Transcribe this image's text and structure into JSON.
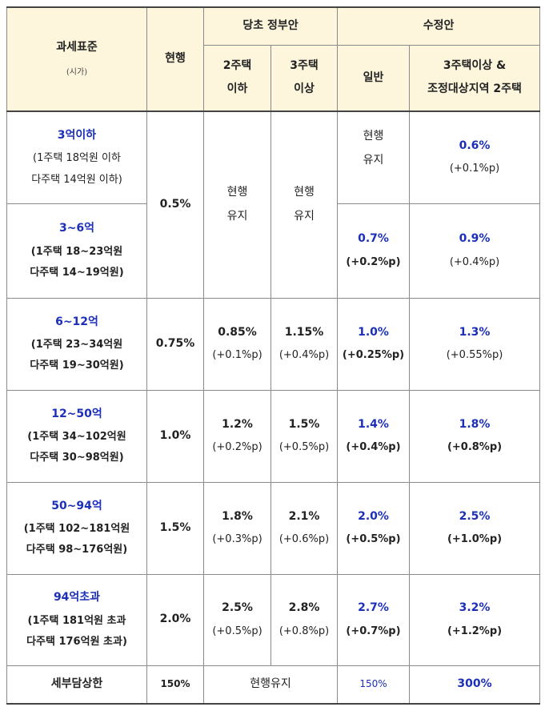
{
  "header": {
    "tax_base": "과세표준",
    "tax_base_sub": "(시가)",
    "current": "현행",
    "gov_proposal": "당초 정부안",
    "gov_two_line1": "2주택",
    "gov_two_line2": "이하",
    "gov_three_line1": "3주택",
    "gov_three_line2": "이상",
    "revised": "수정안",
    "rev_general": "일반",
    "rev_multi_line1": "3주택이상 &",
    "rev_multi_line2": "조정대상지역 2주택"
  },
  "rows": [
    {
      "title": "3억이하",
      "desc1": "(1주택 18억원 이하",
      "desc2": "다주택 14억원 이하)",
      "rev_general_1": "현행",
      "rev_general_2": "유지",
      "rev_multi_rate": "0.6%",
      "rev_multi_diff": "(+0.1%p)"
    },
    {
      "title": "3~6억",
      "desc1": "(1주택 18~23억원",
      "desc2": "다주택 14~19억원)",
      "rev_general_rate": "0.7%",
      "rev_general_diff": "(+0.2%p)",
      "rev_multi_rate": "0.9%",
      "rev_multi_diff": "(+0.4%p)"
    },
    {
      "title": "6~12억",
      "desc1": "(1주택 23~34억원",
      "desc2": "다주택 19~30억원)",
      "current": "0.75%",
      "gov_two_rate": "0.85%",
      "gov_two_diff": "(+0.1%p)",
      "gov_three_rate": "1.15%",
      "gov_three_diff": "(+0.4%p)",
      "rev_general_rate": "1.0%",
      "rev_general_diff": "(+0.25%p)",
      "rev_multi_rate": "1.3%",
      "rev_multi_diff": "(+0.55%p)"
    },
    {
      "title": "12~50억",
      "desc1": "(1주택 34~102억원",
      "desc2": "다주택 30~98억원)",
      "current": "1.0%",
      "gov_two_rate": "1.2%",
      "gov_two_diff": "(+0.2%p)",
      "gov_three_rate": "1.5%",
      "gov_three_diff": "(+0.5%p)",
      "rev_general_rate": "1.4%",
      "rev_general_diff": "(+0.4%p)",
      "rev_multi_rate": "1.8%",
      "rev_multi_diff": "(+0.8%p)"
    },
    {
      "title": "50~94억",
      "desc1": "(1주택 102~181억원",
      "desc2": "다주택 98~176억원)",
      "current": "1.5%",
      "gov_two_rate": "1.8%",
      "gov_two_diff": "(+0.3%p)",
      "gov_three_rate": "2.1%",
      "gov_three_diff": "(+0.6%p)",
      "rev_general_rate": "2.0%",
      "rev_general_diff": "(+0.5%p)",
      "rev_multi_rate": "2.5%",
      "rev_multi_diff": "(+1.0%p)"
    },
    {
      "title": "94억초과",
      "desc1": "(1주택 181억원 초과",
      "desc2": "다주택 176억원 초과)",
      "current": "2.0%",
      "gov_two_rate": "2.5%",
      "gov_two_diff": "(+0.5%p)",
      "gov_three_rate": "2.8%",
      "gov_three_diff": "(+0.8%p)",
      "rev_general_rate": "2.7%",
      "rev_general_diff": "(+0.7%p)",
      "rev_multi_rate": "3.2%",
      "rev_multi_diff": "(+1.2%p)"
    }
  ],
  "merged": {
    "current_low": "0.5%",
    "gov_two_1": "현행",
    "gov_two_2": "유지",
    "gov_three_1": "현행",
    "gov_three_2": "유지"
  },
  "cap_row": {
    "label": "세부담상한",
    "current": "150%",
    "gov": "현행유지",
    "rev_general": "150%",
    "rev_multi": "300%"
  },
  "colors": {
    "header_bg": "#fdf6dd",
    "accent_blue": "#1b2fb8"
  }
}
